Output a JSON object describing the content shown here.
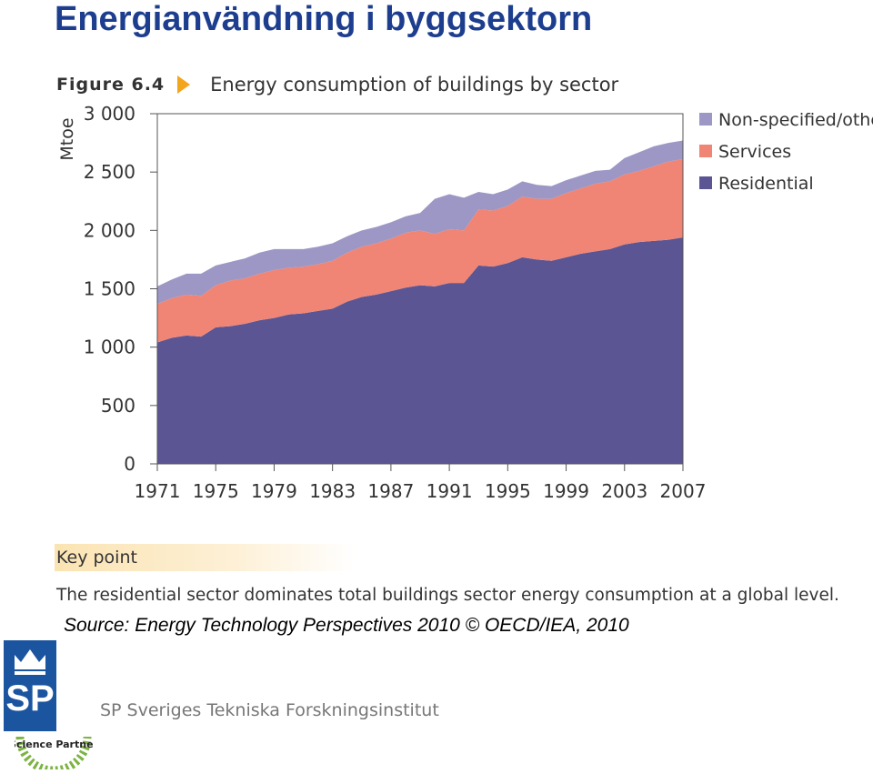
{
  "slide": {
    "title": "Energianvändning i byggsektorn",
    "key_point_title": "Key point",
    "key_point_text": "The residential sector dominates total buildings sector energy consumption at a global level.",
    "source": "Source: Energy Technology Perspectives 2010 © OECD/IEA, 2010",
    "org_name": "SP Sveriges Tekniska Forskningsinstitut",
    "logo_text": "SP",
    "badge_text": "Science Partner"
  },
  "figure": {
    "label": "Figure 6.4",
    "title": "Energy consumption of buildings by sector"
  },
  "chart_data": {
    "type": "area",
    "stacked": true,
    "ylabel": "Mtoe",
    "xlabel": "",
    "ylim": [
      0,
      3000
    ],
    "xlim": [
      1971,
      2007
    ],
    "yticks": [
      0,
      500,
      1000,
      1500,
      2000,
      2500,
      3000
    ],
    "ytick_labels": [
      "0",
      "500",
      "1 000",
      "1 500",
      "2 000",
      "2 500",
      "3 000"
    ],
    "xticks": [
      1971,
      1975,
      1979,
      1983,
      1987,
      1991,
      1995,
      1999,
      2003,
      2007
    ],
    "grid": false,
    "legend": "right",
    "x": [
      1971,
      1972,
      1973,
      1974,
      1975,
      1976,
      1977,
      1978,
      1979,
      1980,
      1981,
      1982,
      1983,
      1984,
      1985,
      1986,
      1987,
      1988,
      1989,
      1990,
      1991,
      1992,
      1993,
      1994,
      1995,
      1996,
      1997,
      1998,
      1999,
      2000,
      2001,
      2002,
      2003,
      2004,
      2005,
      2006,
      2007
    ],
    "series": [
      {
        "name": "Residential",
        "color": "#5b5593",
        "values": [
          1040,
          1080,
          1100,
          1090,
          1170,
          1180,
          1200,
          1230,
          1250,
          1280,
          1290,
          1310,
          1330,
          1390,
          1430,
          1450,
          1480,
          1510,
          1530,
          1520,
          1550,
          1550,
          1700,
          1690,
          1720,
          1770,
          1750,
          1740,
          1770,
          1800,
          1820,
          1840,
          1880,
          1900,
          1910,
          1920,
          1940
        ]
      },
      {
        "name": "Services",
        "color": "#f08575",
        "values": [
          330,
          340,
          350,
          350,
          360,
          390,
          390,
          400,
          410,
          400,
          400,
          400,
          410,
          420,
          430,
          440,
          450,
          470,
          470,
          450,
          460,
          450,
          480,
          480,
          490,
          520,
          520,
          530,
          550,
          560,
          580,
          580,
          600,
          610,
          640,
          670,
          670
        ]
      },
      {
        "name": "Non-specified/other",
        "color": "#9c97c4",
        "values": [
          150,
          160,
          180,
          190,
          170,
          160,
          170,
          180,
          180,
          160,
          150,
          150,
          150,
          140,
          140,
          140,
          140,
          140,
          150,
          300,
          300,
          280,
          150,
          140,
          140,
          130,
          120,
          110,
          110,
          110,
          110,
          100,
          140,
          160,
          170,
          160,
          160
        ]
      }
    ]
  }
}
